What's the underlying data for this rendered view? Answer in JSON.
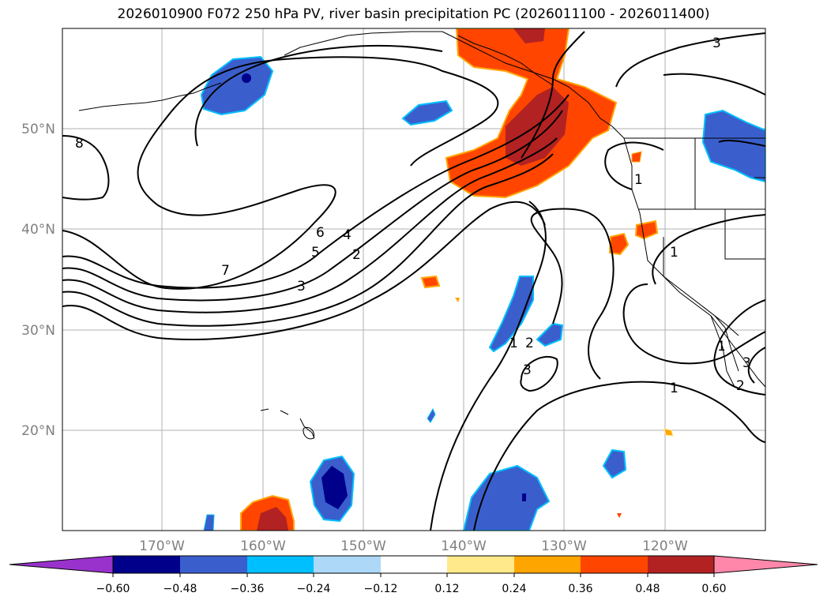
{
  "title": "2026010900 F072 250 hPa PV, river basin precipitation PC (2026011100 - 2026011400)",
  "map": {
    "lat_ticks": [
      "50°N",
      "40°N",
      "30°N",
      "20°N"
    ],
    "lon_ticks": [
      "170°W",
      "160°W",
      "150°W",
      "140°W",
      "130°W",
      "120°W"
    ],
    "pv_contour_labels": [
      "8",
      "7",
      "6",
      "5",
      "4",
      "3",
      "2",
      "1",
      "1",
      "1",
      "1",
      "1",
      "2",
      "3",
      "3",
      "3",
      "2"
    ],
    "colors": {
      "coastline": "#000000",
      "grid": "#b0b0b0",
      "contour": "#000000"
    }
  },
  "colorbar": {
    "ticks": [
      "−0.60",
      "−0.48",
      "−0.36",
      "−0.24",
      "−0.12",
      "0.12",
      "0.24",
      "0.36",
      "0.48",
      "0.60"
    ],
    "colors": [
      "#9932cc",
      "#00008b",
      "#3a5fcd",
      "#00bfff",
      "#add8f7",
      "#ffffff",
      "#ffe98a",
      "#ffa500",
      "#ff4500",
      "#b22222",
      "#ff88aa"
    ]
  }
}
